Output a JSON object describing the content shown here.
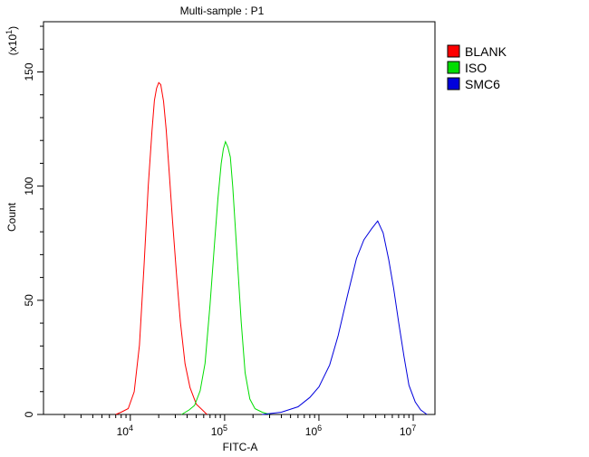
{
  "chart_data": {
    "type": "line",
    "title": "Multi-sample : P1",
    "xlabel": "FITC-A",
    "ylabel": "Count",
    "y_multiplier_label": "(x10",
    "y_multiplier_exp": "1",
    "y_multiplier_close": ")",
    "x_scale": "log",
    "xlim": [
      1200,
      17000000
    ],
    "ylim": [
      0,
      172
    ],
    "grid": false,
    "legend_position": "top-right",
    "x_ticks": [
      {
        "value": 10000,
        "base": "10",
        "exp": "4"
      },
      {
        "value": 100000,
        "base": "10",
        "exp": "5"
      },
      {
        "value": 1000000,
        "base": "10",
        "exp": "6"
      },
      {
        "value": 10000000,
        "base": "10",
        "exp": "7"
      }
    ],
    "y_ticks": [
      {
        "value": 0,
        "label": "0"
      },
      {
        "value": 50,
        "label": "50"
      },
      {
        "value": 100,
        "label": "100"
      },
      {
        "value": 150,
        "label": "150"
      }
    ],
    "series": [
      {
        "name": "BLANK",
        "color": "#ff0000",
        "points": [
          [
            7000,
            0
          ],
          [
            8000,
            1
          ],
          [
            9500,
            3
          ],
          [
            11000,
            10
          ],
          [
            12500,
            30
          ],
          [
            14000,
            65
          ],
          [
            15500,
            100
          ],
          [
            17000,
            125
          ],
          [
            18000,
            138
          ],
          [
            19000,
            143
          ],
          [
            20000,
            145
          ],
          [
            21000,
            144
          ],
          [
            22500,
            137
          ],
          [
            24000,
            125
          ],
          [
            26000,
            105
          ],
          [
            28000,
            85
          ],
          [
            31000,
            60
          ],
          [
            34000,
            40
          ],
          [
            38000,
            22
          ],
          [
            43000,
            12
          ],
          [
            50000,
            5
          ],
          [
            58000,
            2
          ],
          [
            65000,
            0
          ]
        ]
      },
      {
        "name": "ISO",
        "color": "#00dd00",
        "points": [
          [
            35000,
            0
          ],
          [
            42000,
            2
          ],
          [
            48000,
            4
          ],
          [
            55000,
            10
          ],
          [
            62000,
            22
          ],
          [
            70000,
            48
          ],
          [
            78000,
            75
          ],
          [
            85000,
            95
          ],
          [
            92000,
            110
          ],
          [
            97000,
            116
          ],
          [
            102000,
            119
          ],
          [
            108000,
            117
          ],
          [
            115000,
            113
          ],
          [
            122000,
            100
          ],
          [
            130000,
            82
          ],
          [
            140000,
            60
          ],
          [
            150000,
            40
          ],
          [
            165000,
            18
          ],
          [
            185000,
            7
          ],
          [
            210000,
            3
          ],
          [
            250000,
            1
          ],
          [
            300000,
            0
          ]
        ]
      },
      {
        "name": "SMC6",
        "color": "#0000dd",
        "points": [
          [
            250000,
            0
          ],
          [
            400000,
            1
          ],
          [
            600000,
            3
          ],
          [
            800000,
            7
          ],
          [
            1000000,
            12
          ],
          [
            1300000,
            22
          ],
          [
            1600000,
            35
          ],
          [
            2000000,
            52
          ],
          [
            2500000,
            68
          ],
          [
            3000000,
            76
          ],
          [
            3600000,
            81
          ],
          [
            4200000,
            85
          ],
          [
            4800000,
            80
          ],
          [
            5500000,
            68
          ],
          [
            6200000,
            55
          ],
          [
            7000000,
            40
          ],
          [
            8000000,
            25
          ],
          [
            9000000,
            13
          ],
          [
            10500000,
            6
          ],
          [
            12000000,
            2
          ],
          [
            14000000,
            0
          ]
        ]
      }
    ]
  }
}
